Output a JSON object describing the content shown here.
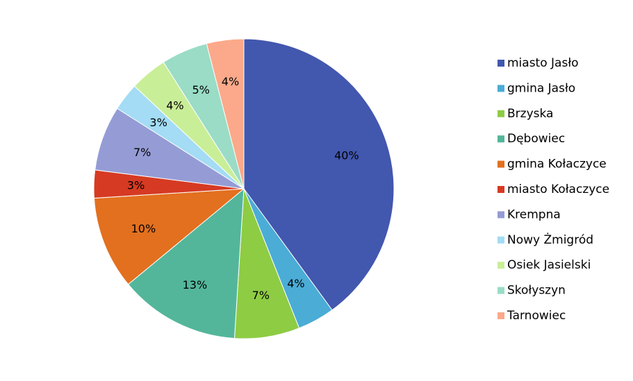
{
  "chart_data": {
    "type": "pie",
    "title": "",
    "start_angle_deg": 0,
    "direction": "clockwise",
    "legend_position": "right",
    "slices": [
      {
        "label": "miasto Jasło",
        "value": 40,
        "display": "40%",
        "color": "#4257AE"
      },
      {
        "label": "gmina Jasło",
        "value": 4,
        "display": "4%",
        "color": "#4BACD6"
      },
      {
        "label": "Brzyska",
        "value": 7,
        "display": "7%",
        "color": "#8ECC44"
      },
      {
        "label": "Dębowiec",
        "value": 13,
        "display": "13%",
        "color": "#53B69A"
      },
      {
        "label": "gmina Kołaczyce",
        "value": 10,
        "display": "10%",
        "color": "#E2701F"
      },
      {
        "label": "miasto Kołaczyce",
        "value": 3,
        "display": "3%",
        "color": "#D63A23"
      },
      {
        "label": "Krempna",
        "value": 7,
        "display": "7%",
        "color": "#959CD5"
      },
      {
        "label": "Nowy Żmigród",
        "value": 3,
        "display": "3%",
        "color": "#A3DCF4"
      },
      {
        "label": "Osiek Jasielski",
        "value": 4,
        "display": "4%",
        "color": "#C9EE98"
      },
      {
        "label": "Skołyszyn",
        "value": 5,
        "display": "5%",
        "color": "#9ADCC6"
      },
      {
        "label": "Tarnowiec",
        "value": 4,
        "display": "4%",
        "color": "#FBA98A"
      }
    ]
  }
}
